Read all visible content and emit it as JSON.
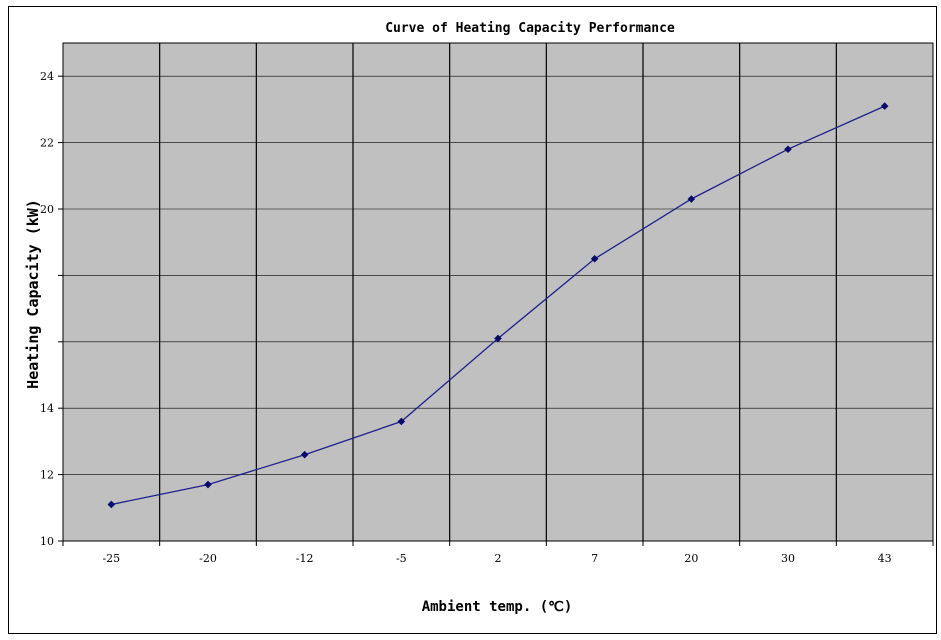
{
  "chart_data": {
    "type": "line",
    "title": "Curve of Heating Capacity Performance",
    "xlabel": "Ambient temp.  (℃)",
    "ylabel": "Heating Capacity (kW)",
    "categories": [
      "-25",
      "-20",
      "-12",
      "-5",
      "2",
      "7",
      "20",
      "30",
      "43"
    ],
    "series": [
      {
        "values": [
          11.1,
          11.7,
          12.6,
          13.6,
          16.1,
          18.5,
          20.3,
          21.8,
          23.1
        ]
      }
    ],
    "ylim": [
      10,
      25
    ],
    "yticks": [
      10,
      12,
      14,
      16,
      18,
      20,
      22,
      24
    ],
    "ytick_labels": [
      "10",
      "12",
      "14",
      "",
      "",
      "20",
      "22",
      "24"
    ],
    "grid": true,
    "plot_background": "#c0c0c0",
    "line_color": "#1f1f8c",
    "marker_color": "#0a0a6e"
  }
}
